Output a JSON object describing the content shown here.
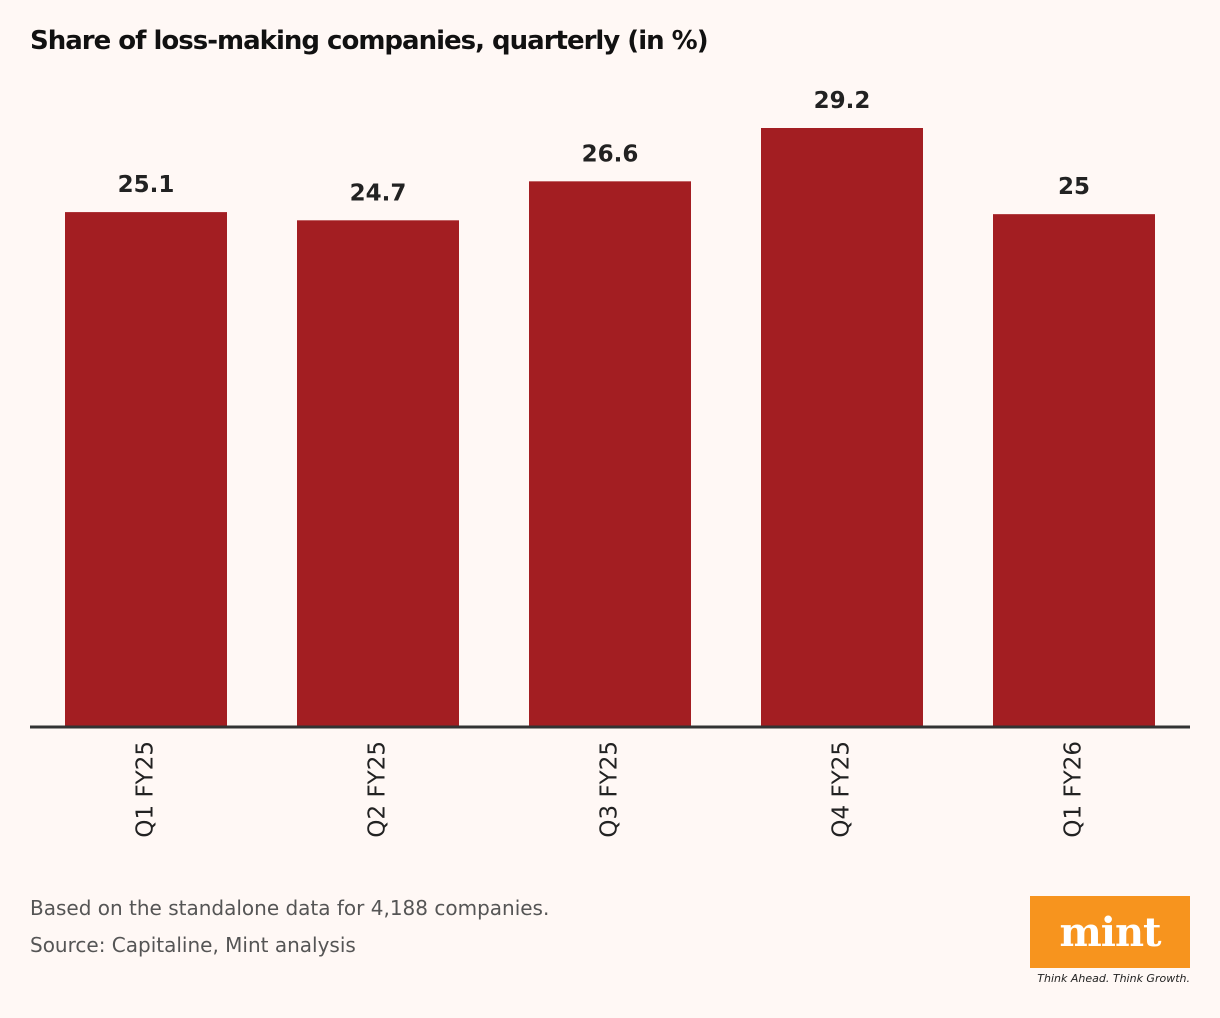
{
  "chart_data": {
    "type": "bar",
    "title": "Share of loss-making companies, quarterly (in %)",
    "categories": [
      "Q1 FY25",
      "Q2 FY25",
      "Q3 FY25",
      "Q4 FY25",
      "Q1 FY26"
    ],
    "values": [
      25.1,
      24.7,
      26.6,
      29.2,
      25
    ],
    "value_labels": [
      "25.1",
      "24.7",
      "26.6",
      "29.2",
      "25"
    ],
    "xlabel": "",
    "ylabel": "",
    "ylim": [
      0,
      29.2
    ],
    "grid": false,
    "bar_color": "#a31e22",
    "axis_color": "#333333"
  },
  "notes": {
    "basis": "Based on the standalone data for 4,188 companies.",
    "source": "Source: Capitaline, Mint analysis"
  },
  "branding": {
    "logo_text": "mint",
    "tagline": "Think Ahead. Think Growth.",
    "logo_color": "#f7941e"
  }
}
